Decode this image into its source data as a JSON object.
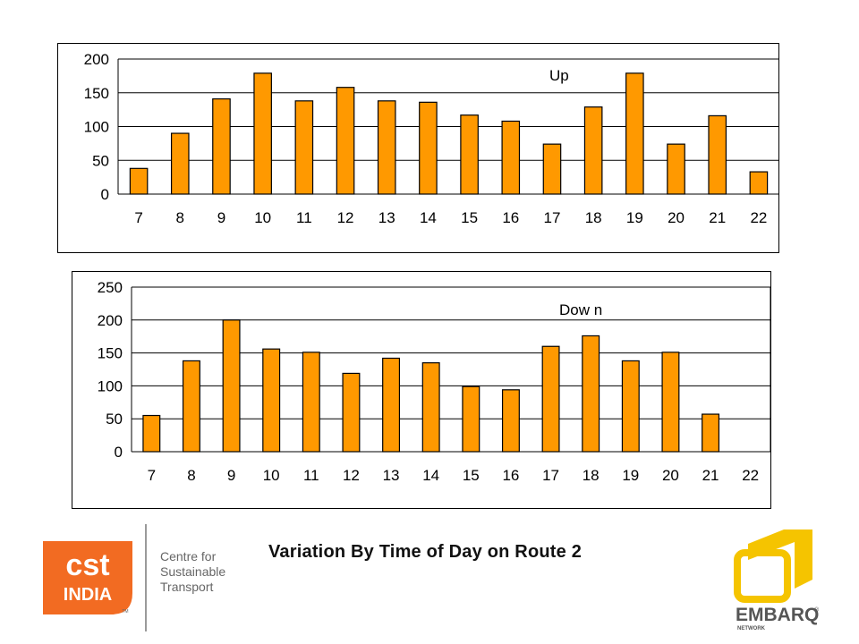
{
  "chart_data": [
    {
      "type": "bar",
      "annotation": "Up",
      "categories": [
        "7",
        "8",
        "9",
        "10",
        "11",
        "12",
        "13",
        "14",
        "15",
        "16",
        "17",
        "18",
        "19",
        "20",
        "21",
        "22"
      ],
      "values": [
        38,
        90,
        141,
        179,
        138,
        158,
        138,
        136,
        117,
        108,
        74,
        129,
        179,
        74,
        116,
        33
      ],
      "ylim": [
        0,
        200
      ],
      "yticks": [
        "0",
        "50",
        "100",
        "150",
        "200"
      ],
      "grid": true,
      "bar_color": "#ff9900"
    },
    {
      "type": "bar",
      "annotation": "Dow n",
      "categories": [
        "7",
        "8",
        "9",
        "10",
        "11",
        "12",
        "13",
        "14",
        "15",
        "16",
        "17",
        "18",
        "19",
        "20",
        "21",
        "22"
      ],
      "values": [
        55,
        138,
        200,
        156,
        151,
        119,
        142,
        135,
        99,
        94,
        160,
        176,
        138,
        151,
        57,
        0
      ],
      "ylim": [
        0,
        250
      ],
      "yticks": [
        "0",
        "50",
        "100",
        "150",
        "200",
        "250"
      ],
      "grid": true,
      "bar_color": "#ff9900"
    }
  ],
  "footer": {
    "title": "Variation By Time of Day on Route 2",
    "cst_logo_text": [
      "cst",
      "INDIA"
    ],
    "cst_trademark": "TM",
    "cst_name": [
      "Centre for",
      "Sustainable",
      "Transport"
    ],
    "embarq_text": "EMBARQ",
    "embarq_sub": "NETWORK",
    "embarq_reg": "®",
    "brand_orange": "#f26b22",
    "brand_yellow": "#f5c400"
  }
}
